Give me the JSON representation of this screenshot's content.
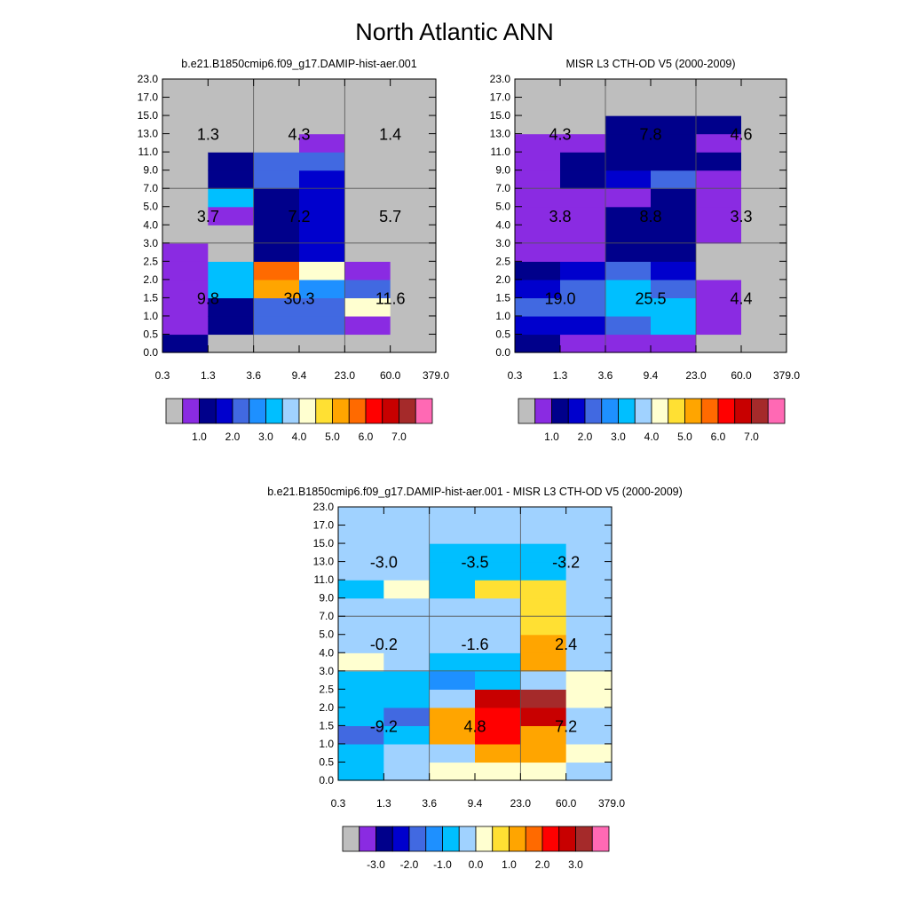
{
  "figure": {
    "title": "North Atlantic ANN"
  },
  "colors": {
    "missing": "#bebebe",
    "abs_palette": [
      "#bebebe",
      "#8a2be2",
      "#00008b",
      "#0000cd",
      "#4169e1",
      "#1e90ff",
      "#00bfff",
      "#a0d2ff",
      "#ffffd0",
      "#ffe033",
      "#ffa500",
      "#ff6a00",
      "#ff0000",
      "#c80000",
      "#a52a2a",
      "#ff69b4"
    ],
    "diff_palette": [
      "#bebebe",
      "#8a2be2",
      "#00008b",
      "#0000cd",
      "#4169e1",
      "#1e90ff",
      "#00bfff",
      "#a0d2ff",
      "#ffffd0",
      "#ffe033",
      "#ffa500",
      "#ff6a00",
      "#ff0000",
      "#c80000",
      "#a52a2a",
      "#ff69b4"
    ]
  },
  "chart_data": [
    {
      "type": "heatmap",
      "id": "model",
      "title": "b.e21.B1850cmip6.f09_g17.DAMIP-hist-aer.001",
      "xlabel": "",
      "ylabel": "",
      "x_tick_labels": [
        "0.3",
        "1.3",
        "3.6",
        "9.4",
        "23.0",
        "60.0",
        "379.0"
      ],
      "y_tick_labels": [
        "0.0",
        "0.5",
        "1.0",
        "1.5",
        "2.0",
        "2.5",
        "3.0",
        "4.0",
        "5.0",
        "7.0",
        "9.0",
        "11.0",
        "13.0",
        "15.0",
        "17.0",
        "23.0"
      ],
      "cells": [
        [
          2,
          1,
          1,
          1,
          1,
          1,
          0,
          0,
          0,
          0,
          0,
          0,
          0,
          0,
          0
        ],
        [
          0,
          2,
          2,
          6,
          6,
          0,
          0,
          1,
          6,
          2,
          2,
          0,
          0,
          0,
          0
        ],
        [
          0,
          4,
          4,
          10,
          11,
          2,
          2,
          2,
          2,
          4,
          4,
          0,
          0,
          0,
          0
        ],
        [
          0,
          4,
          4,
          5,
          8,
          3,
          3,
          3,
          3,
          3,
          4,
          1,
          0,
          0,
          0
        ],
        [
          0,
          1,
          8,
          4,
          1,
          0,
          0,
          0,
          0,
          0,
          0,
          0,
          0,
          0,
          0
        ],
        [
          0,
          0,
          0,
          0,
          0,
          0,
          0,
          0,
          0,
          0,
          0,
          0,
          0,
          0,
          0
        ]
      ],
      "group_labels": [
        [
          "9.8",
          "30.3",
          "11.6"
        ],
        [
          "3.7",
          "7.2",
          "5.7"
        ],
        [
          "1.3",
          "4.3",
          "1.4"
        ]
      ],
      "colorbar": {
        "labels": [
          "1.0",
          "2.0",
          "3.0",
          "4.0",
          "5.0",
          "6.0",
          "7.0"
        ]
      }
    },
    {
      "type": "heatmap",
      "id": "obs",
      "title": "MISR L3 CTH-OD V5 (2000-2009)",
      "xlabel": "",
      "ylabel": "",
      "x_tick_labels": [
        "0.3",
        "1.3",
        "3.6",
        "9.4",
        "23.0",
        "60.0",
        "379.0"
      ],
      "y_tick_labels": [
        "0.0",
        "0.5",
        "1.0",
        "1.5",
        "2.0",
        "2.5",
        "3.0",
        "4.0",
        "5.0",
        "7.0",
        "9.0",
        "11.0",
        "13.0",
        "15.0",
        "17.0",
        "23.0"
      ],
      "cells": [
        [
          2,
          3,
          4,
          3,
          2,
          1,
          1,
          1,
          1,
          1,
          1,
          1,
          0,
          0,
          0
        ],
        [
          1,
          3,
          4,
          4,
          3,
          1,
          1,
          1,
          1,
          2,
          2,
          1,
          0,
          0,
          0
        ],
        [
          1,
          4,
          6,
          6,
          4,
          2,
          2,
          2,
          1,
          3,
          2,
          2,
          2,
          0,
          0
        ],
        [
          1,
          6,
          6,
          4,
          3,
          2,
          2,
          2,
          2,
          4,
          2,
          2,
          2,
          0,
          0
        ],
        [
          0,
          1,
          1,
          1,
          0,
          0,
          1,
          1,
          1,
          1,
          2,
          1,
          2,
          0,
          0
        ],
        [
          0,
          0,
          0,
          0,
          0,
          0,
          0,
          0,
          0,
          0,
          0,
          0,
          0,
          0,
          0
        ]
      ],
      "group_labels": [
        [
          "19.0",
          "25.5",
          "4.4"
        ],
        [
          "3.8",
          "8.8",
          "3.3"
        ],
        [
          "4.3",
          "7.8",
          "4.6"
        ]
      ],
      "colorbar": {
        "labels": [
          "1.0",
          "2.0",
          "3.0",
          "4.0",
          "5.0",
          "6.0",
          "7.0"
        ]
      }
    },
    {
      "type": "heatmap",
      "id": "diff",
      "title": "b.e21.B1850cmip6.f09_g17.DAMIP-hist-aer.001 - MISR L3 CTH-OD V5 (2000-2009)",
      "xlabel": "",
      "ylabel": "",
      "x_tick_labels": [
        "0.3",
        "1.3",
        "3.6",
        "9.4",
        "23.0",
        "60.0",
        "379.0"
      ],
      "y_tick_labels": [
        "0.0",
        "0.5",
        "1.0",
        "1.5",
        "2.0",
        "2.5",
        "3.0",
        "4.0",
        "5.0",
        "7.0",
        "9.0",
        "11.0",
        "13.0",
        "15.0",
        "17.0",
        "23.0"
      ],
      "cells": [
        [
          6,
          6,
          4,
          6,
          6,
          6,
          8,
          7,
          7,
          7,
          6,
          7,
          7,
          7,
          7
        ],
        [
          7,
          7,
          6,
          4,
          6,
          6,
          7,
          7,
          7,
          7,
          8,
          7,
          7,
          7,
          7
        ],
        [
          8,
          7,
          10,
          10,
          7,
          5,
          6,
          7,
          7,
          7,
          6,
          6,
          6,
          7,
          7
        ],
        [
          8,
          10,
          12,
          12,
          13,
          6,
          6,
          7,
          7,
          7,
          9,
          6,
          6,
          7,
          7
        ],
        [
          8,
          10,
          10,
          13,
          14,
          7,
          10,
          10,
          9,
          9,
          9,
          6,
          6,
          7,
          7
        ],
        [
          7,
          8,
          7,
          7,
          8,
          8,
          7,
          7,
          7,
          7,
          7,
          7,
          7,
          7,
          7
        ]
      ],
      "group_labels": [
        [
          "-9.2",
          "4.8",
          "7.2"
        ],
        [
          "-0.2",
          "-1.6",
          "2.4"
        ],
        [
          "-3.0",
          "-3.5",
          "-3.2"
        ]
      ],
      "colorbar": {
        "labels": [
          "-3.0",
          "-2.0",
          "-1.0",
          "0.0",
          "1.0",
          "2.0",
          "3.0"
        ]
      }
    }
  ]
}
